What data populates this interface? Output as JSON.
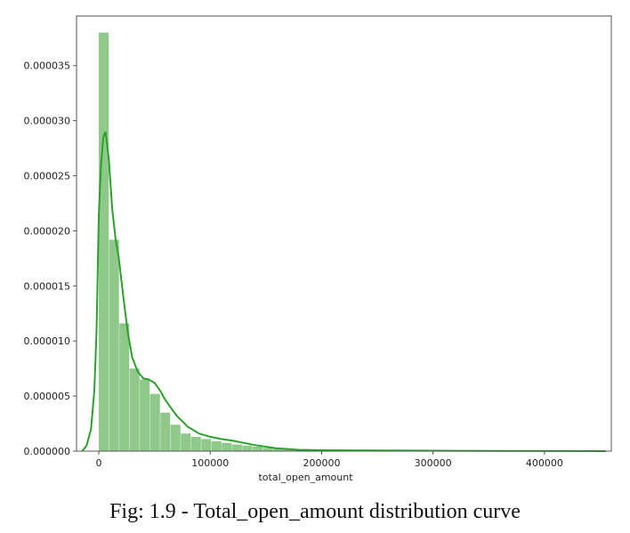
{
  "caption": "Fig: 1.9 - Total_open_amount distribution curve",
  "chart_data": {
    "type": "histogram",
    "xlabel": "total_open_amount",
    "ylabel": "",
    "xlim": [
      -20000,
      460000
    ],
    "ylim": [
      0,
      3.95e-05
    ],
    "xticks": [
      0,
      100000,
      200000,
      300000,
      400000
    ],
    "xtick_labels": [
      "0",
      "100000",
      "200000",
      "300000",
      "400000"
    ],
    "yticks": [
      0,
      5e-06,
      1e-05,
      1.5e-05,
      2e-05,
      2.5e-05,
      3e-05,
      3.5e-05
    ],
    "ytick_labels": [
      "0.000000",
      "0.000005",
      "0.000010",
      "0.000015",
      "0.000020",
      "0.000025",
      "0.000030",
      "0.000035"
    ],
    "grid": false,
    "bar_color": "#8fc98a",
    "line_color": "#2ca02c",
    "bins": {
      "start": 0,
      "width": 9200,
      "values": [
        3.8e-05,
        1.92e-05,
        1.16e-05,
        7.5e-06,
        6.5e-06,
        5.2e-06,
        3.5e-06,
        2.4e-06,
        1.6e-06,
        1.3e-06,
        1.1e-06,
        9e-07,
        7.5e-07,
        6e-07,
        5e-07,
        4e-07,
        3e-07,
        2.2e-07,
        1.8e-07,
        1.5e-07,
        1.2e-07,
        1e-07,
        9e-08,
        8e-08,
        7e-08,
        6e-08,
        5e-08,
        5e-08,
        4e-08,
        4e-08,
        4e-08,
        3e-08,
        3e-08,
        3e-08,
        3e-08,
        3e-08,
        2e-08,
        2e-08,
        2e-08,
        2e-08,
        2e-08,
        2e-08,
        2e-08,
        1e-08,
        1e-08,
        1e-08,
        1e-08,
        1e-08,
        1e-08,
        1e-08
      ]
    },
    "kde": {
      "x": [
        -15000,
        -11000,
        -7000,
        -4000,
        -2000,
        0,
        2000,
        4000,
        6000,
        9000,
        12000,
        15000,
        18000,
        22000,
        26000,
        30000,
        35000,
        40000,
        45000,
        50000,
        55000,
        60000,
        70000,
        80000,
        90000,
        100000,
        110000,
        120000,
        140000,
        160000,
        180000,
        200000,
        250000,
        300000,
        350000,
        400000,
        455000
      ],
      "y": [
        0,
        5e-07,
        2e-06,
        5.5e-06,
        1.1e-05,
        2.15e-05,
        2.6e-05,
        2.85e-05,
        2.9e-05,
        2.65e-05,
        2.2e-05,
        1.93e-05,
        1.75e-05,
        1.4e-05,
        1.08e-05,
        8.5e-06,
        7.2e-06,
        6.6e-06,
        6.5e-06,
        6.2e-06,
        5.5e-06,
        4.6e-06,
        3.2e-06,
        2.2e-06,
        1.6e-06,
        1.3e-06,
        1.1e-06,
        9.5e-07,
        5.5e-07,
        2.5e-07,
        1.2e-07,
        8e-08,
        6e-08,
        4e-08,
        2e-08,
        1e-08,
        0
      ]
    }
  }
}
